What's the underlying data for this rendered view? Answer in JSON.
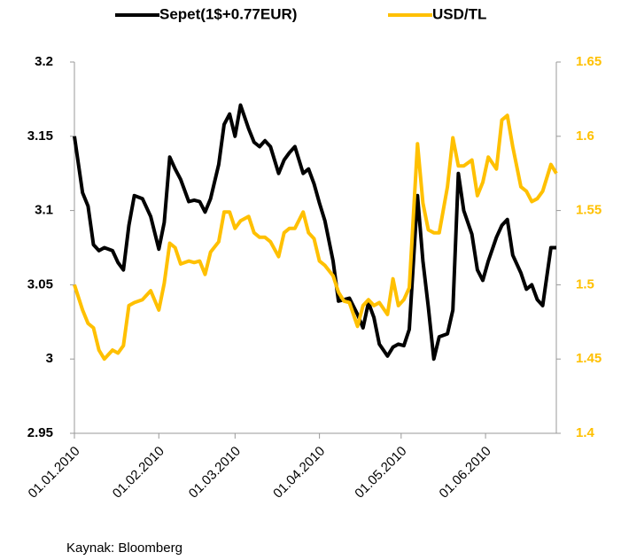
{
  "chart_data": {
    "type": "line",
    "x": [
      "01.01.2010",
      "04.01.2010",
      "06.01.2010",
      "08.01.2010",
      "10.01.2010",
      "12.01.2010",
      "15.01.2010",
      "17.01.2010",
      "19.01.2010",
      "21.01.2010",
      "23.01.2010",
      "26.01.2010",
      "29.01.2010",
      "01.02.2010",
      "03.02.2010",
      "05.02.2010",
      "07.02.2010",
      "09.02.2010",
      "12.02.2010",
      "14.02.2010",
      "16.02.2010",
      "18.02.2010",
      "20.02.2010",
      "23.02.2010",
      "25.02.2010",
      "27.02.2010",
      "01.03.2010",
      "03.03.2010",
      "06.03.2010",
      "08.03.2010",
      "10.03.2010",
      "12.03.2010",
      "14.03.2010",
      "17.03.2010",
      "19.03.2010",
      "21.03.2010",
      "23.03.2010",
      "26.03.2010",
      "28.03.2010",
      "30.03.2010",
      "01.04.2010",
      "03.04.2010",
      "06.04.2010",
      "08.04.2010",
      "10.04.2010",
      "12.04.2010",
      "15.04.2010",
      "17.04.2010",
      "19.04.2010",
      "21.04.2010",
      "23.04.2010",
      "26.04.2010",
      "28.04.2010",
      "30.04.2010",
      "02.05.2010",
      "04.05.2010",
      "07.05.2010",
      "09.05.2010",
      "11.05.2010",
      "13.05.2010",
      "15.05.2010",
      "18.05.2010",
      "20.05.2010",
      "22.05.2010",
      "24.05.2010",
      "27.05.2010",
      "29.05.2010",
      "31.05.2010",
      "02.06.2010",
      "05.06.2010",
      "07.06.2010",
      "09.06.2010",
      "11.06.2010",
      "14.06.2010",
      "16.06.2010",
      "18.06.2010",
      "20.06.2010",
      "22.06.2010",
      "25.06.2010",
      "27.06.2010"
    ],
    "series": [
      {
        "name": "Sepet(1$+0.77EUR)",
        "color": "#000000",
        "axis": "y",
        "values": [
          3.15,
          3.112,
          3.103,
          3.077,
          3.073,
          3.075,
          3.073,
          3.065,
          3.06,
          3.09,
          3.11,
          3.108,
          3.096,
          3.074,
          3.092,
          3.136,
          3.128,
          3.121,
          3.106,
          3.107,
          3.106,
          3.099,
          3.108,
          3.131,
          3.158,
          3.165,
          3.15,
          3.171,
          3.155,
          3.146,
          3.143,
          3.147,
          3.143,
          3.125,
          3.134,
          3.139,
          3.143,
          3.125,
          3.128,
          3.118,
          3.105,
          3.093,
          3.066,
          3.039,
          3.04,
          3.041,
          3.03,
          3.021,
          3.038,
          3.028,
          3.01,
          3.002,
          3.008,
          3.01,
          3.009,
          3.02,
          3.11,
          3.066,
          3.035,
          3.0,
          3.015,
          3.017,
          3.033,
          3.125,
          3.1,
          3.084,
          3.06,
          3.053,
          3.066,
          3.082,
          3.09,
          3.094,
          3.07,
          3.058,
          3.047,
          3.05,
          3.04,
          3.036,
          3.075,
          3.075
        ]
      },
      {
        "name": "USD/TL",
        "color": "#ffc000",
        "axis": "y2",
        "values": [
          1.5,
          1.483,
          1.474,
          1.471,
          1.456,
          1.45,
          1.456,
          1.454,
          1.459,
          1.486,
          1.488,
          1.49,
          1.496,
          1.483,
          1.501,
          1.528,
          1.525,
          1.514,
          1.516,
          1.515,
          1.516,
          1.507,
          1.522,
          1.529,
          1.549,
          1.549,
          1.538,
          1.543,
          1.546,
          1.535,
          1.532,
          1.532,
          1.529,
          1.519,
          1.535,
          1.538,
          1.538,
          1.549,
          1.535,
          1.531,
          1.516,
          1.513,
          1.506,
          1.495,
          1.489,
          1.488,
          1.472,
          1.486,
          1.49,
          1.486,
          1.488,
          1.48,
          1.504,
          1.486,
          1.49,
          1.498,
          1.595,
          1.555,
          1.537,
          1.535,
          1.535,
          1.566,
          1.599,
          1.58,
          1.58,
          1.584,
          1.56,
          1.569,
          1.586,
          1.578,
          1.611,
          1.614,
          1.593,
          1.566,
          1.563,
          1.556,
          1.558,
          1.563,
          1.581,
          1.575
        ]
      }
    ],
    "xlim": [
      "01.01.2010",
      "27.06.2010"
    ],
    "xticks": [
      "01.01.2010",
      "01.02.2010",
      "01.03.2010",
      "01.04.2010",
      "01.05.2010",
      "01.06.2010"
    ],
    "ylim": [
      2.95,
      3.2
    ],
    "yticks": [
      2.95,
      3,
      3.05,
      3.1,
      3.15,
      3.2
    ],
    "y2lim": [
      1.4,
      1.65
    ],
    "y2ticks": [
      1.4,
      1.45,
      1.5,
      1.55,
      1.6,
      1.65
    ],
    "y2_color": "#ffc000",
    "legend": "top",
    "grid": false,
    "source": "Kaynak: Bloomberg"
  }
}
